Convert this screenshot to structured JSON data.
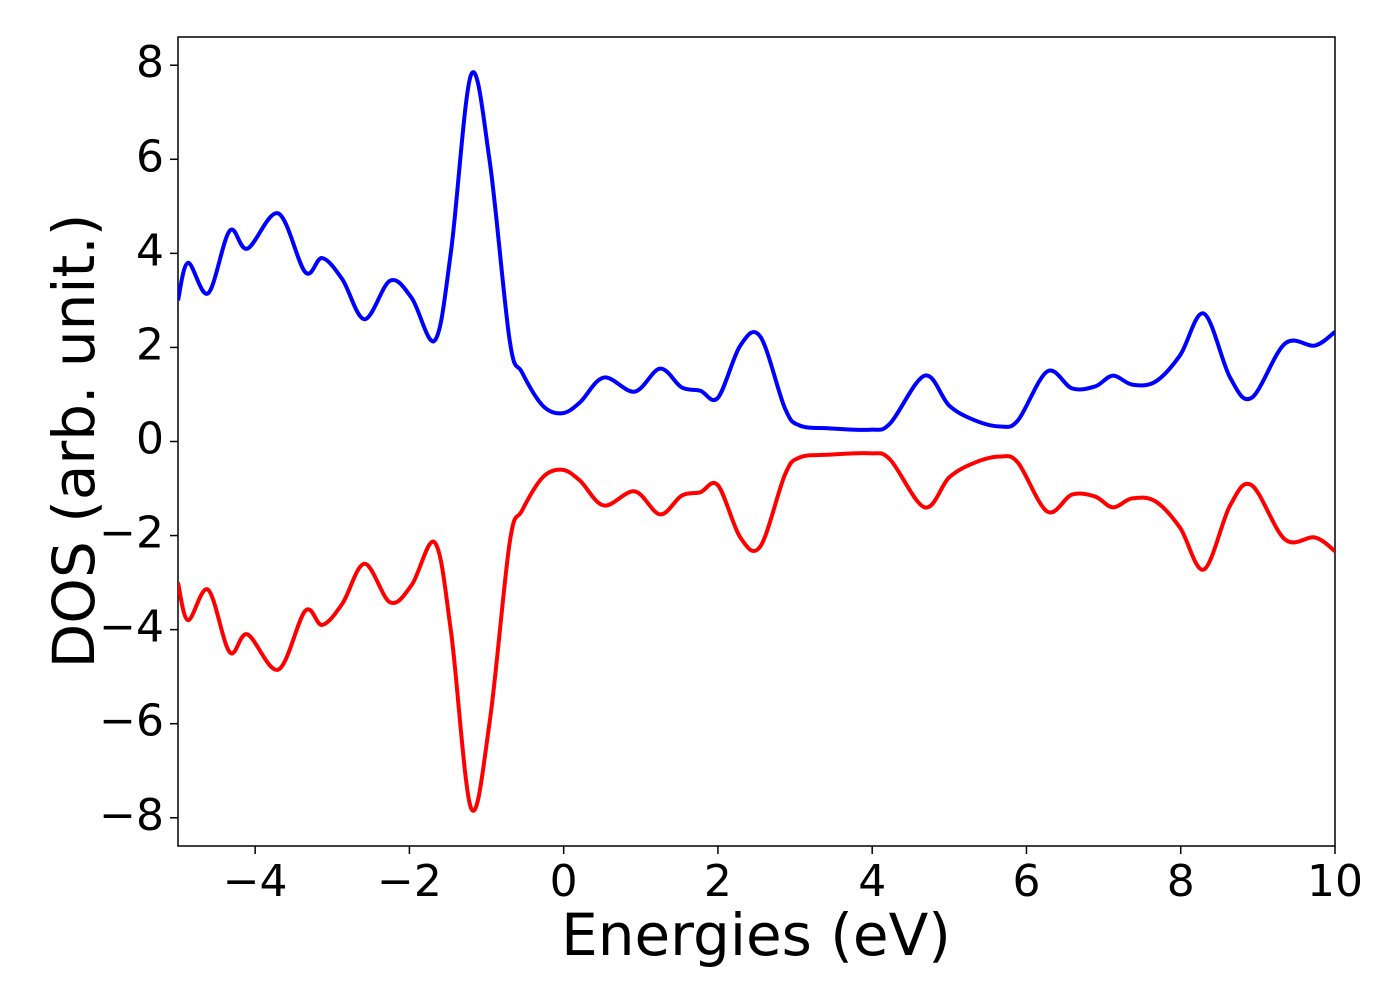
{
  "chart_data": {
    "type": "line",
    "x_label": "Energies (eV)",
    "y_label": "DOS (arb. unit.)",
    "xlim": [
      -5,
      10
    ],
    "ylim": [
      -8.6,
      8.6
    ],
    "xticks": [
      {
        "value": -4,
        "label": "−4"
      },
      {
        "value": -2,
        "label": "−2"
      },
      0,
      2,
      4,
      6,
      8,
      10
    ],
    "yticks": [
      {
        "value": -8,
        "label": "−8"
      },
      {
        "value": -6,
        "label": "−6"
      },
      {
        "value": -4,
        "label": "−4"
      },
      {
        "value": -2,
        "label": "−2"
      },
      0,
      2,
      4,
      6,
      8
    ],
    "x": [
      -5,
      -4.87,
      -4.61,
      -4.33,
      -4.1,
      -3.7,
      -3.35,
      -3.13,
      -2.87,
      -2.58,
      -2.25,
      -1.97,
      -1.67,
      -1.46,
      -1.2,
      -0.96,
      -0.7,
      -0.54,
      -0.27,
      -0.02,
      0.21,
      0.52,
      0.92,
      1.25,
      1.53,
      1.77,
      2.0,
      2.29,
      2.55,
      2.87,
      3.06,
      3.45,
      3.97,
      4.23,
      4.68,
      5.0,
      5.33,
      5.66,
      5.89,
      6.27,
      6.59,
      6.89,
      7.12,
      7.37,
      7.67,
      7.99,
      8.3,
      8.64,
      8.92,
      9.35,
      9.74,
      10
    ],
    "series": [
      {
        "color": "#0000ff",
        "values": [
          3.0,
          3.8,
          3.15,
          4.48,
          4.1,
          4.85,
          3.6,
          3.9,
          3.45,
          2.6,
          3.42,
          3.05,
          2.15,
          4.05,
          7.8,
          5.97,
          2.15,
          1.47,
          0.76,
          0.6,
          0.83,
          1.36,
          1.06,
          1.55,
          1.15,
          1.08,
          0.93,
          2.04,
          2.23,
          0.7,
          0.34,
          0.28,
          0.25,
          0.38,
          1.4,
          0.76,
          0.45,
          0.32,
          0.45,
          1.49,
          1.13,
          1.17,
          1.4,
          1.21,
          1.27,
          1.83,
          2.72,
          1.36,
          0.93,
          2.08,
          2.04,
          2.33
        ]
      },
      {
        "color": "#ff0000",
        "values": [
          -3.0,
          -3.8,
          -3.15,
          -4.48,
          -4.1,
          -4.85,
          -3.6,
          -3.9,
          -3.45,
          -2.6,
          -3.42,
          -3.05,
          -2.15,
          -4.05,
          -7.8,
          -5.97,
          -2.15,
          -1.47,
          -0.76,
          -0.6,
          -0.83,
          -1.36,
          -1.06,
          -1.55,
          -1.15,
          -1.08,
          -0.93,
          -2.04,
          -2.23,
          -0.7,
          -0.34,
          -0.28,
          -0.25,
          -0.38,
          -1.4,
          -0.76,
          -0.45,
          -0.32,
          -0.45,
          -1.49,
          -1.13,
          -1.17,
          -1.4,
          -1.21,
          -1.27,
          -1.83,
          -2.72,
          -1.36,
          -0.93,
          -2.08,
          -2.04,
          -2.33
        ]
      }
    ]
  }
}
